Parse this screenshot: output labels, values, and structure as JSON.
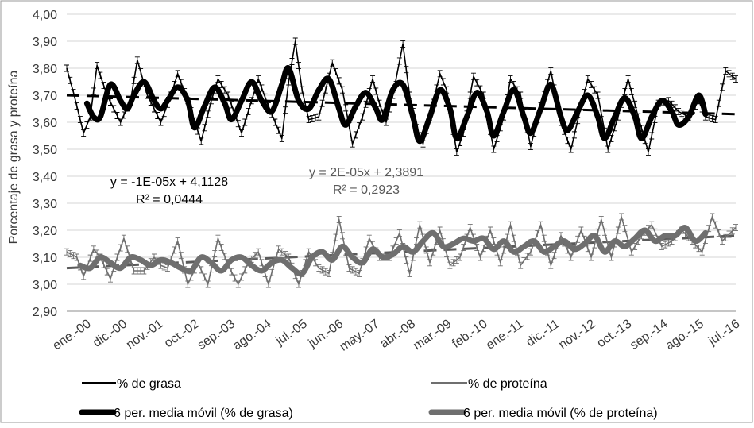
{
  "chart_data": {
    "type": "line",
    "title": "",
    "xlabel": "",
    "ylabel": "Porcentaje de grasa y proteína",
    "ylim": [
      2.9,
      4.0
    ],
    "y_ticks": [
      "2,90",
      "3,00",
      "3,10",
      "3,20",
      "3,30",
      "3,40",
      "3,50",
      "3,60",
      "3,70",
      "3,80",
      "3,90",
      "4,00"
    ],
    "x_tick_labels": [
      "ene.-00",
      "dic.-00",
      "nov.-01",
      "oct.-02",
      "sep.-03",
      "ago.-04",
      "jul.-05",
      "jun.-06",
      "may.-07",
      "abr.-08",
      "mar.-09",
      "feb.-10",
      "ene.-11",
      "dic.-11",
      "nov.-12",
      "oct.-13",
      "sep.-14",
      "ago.-15",
      "jul.-16"
    ],
    "x_range_months": [
      0,
      199
    ],
    "grid": "horizontal",
    "legend_position": "bottom",
    "error_bars": true,
    "series": [
      {
        "name": "% de grasa",
        "style": "thin-black",
        "color": "#000000",
        "anchors": [
          [
            0,
            3.8
          ],
          [
            2,
            3.71
          ],
          [
            5,
            3.56
          ],
          [
            7,
            3.62
          ],
          [
            9,
            3.81
          ],
          [
            12,
            3.7
          ],
          [
            16,
            3.6
          ],
          [
            19,
            3.68
          ],
          [
            21,
            3.83
          ],
          [
            24,
            3.7
          ],
          [
            28,
            3.6
          ],
          [
            31,
            3.7
          ],
          [
            33,
            3.78
          ],
          [
            36,
            3.68
          ],
          [
            40,
            3.53
          ],
          [
            43,
            3.68
          ],
          [
            45,
            3.76
          ],
          [
            48,
            3.7
          ],
          [
            52,
            3.56
          ],
          [
            55,
            3.68
          ],
          [
            57,
            3.76
          ],
          [
            60,
            3.66
          ],
          [
            64,
            3.54
          ],
          [
            66,
            3.75
          ],
          [
            68,
            3.9
          ],
          [
            70,
            3.72
          ],
          [
            72,
            3.61
          ],
          [
            75,
            3.62
          ],
          [
            79,
            3.82
          ],
          [
            82,
            3.72
          ],
          [
            85,
            3.52
          ],
          [
            88,
            3.62
          ],
          [
            91,
            3.76
          ],
          [
            93,
            3.67
          ],
          [
            95,
            3.6
          ],
          [
            97,
            3.7
          ],
          [
            100,
            3.89
          ],
          [
            102,
            3.7
          ],
          [
            104,
            3.58
          ],
          [
            106,
            3.52
          ],
          [
            108,
            3.62
          ],
          [
            111,
            3.78
          ],
          [
            113,
            3.72
          ],
          [
            116,
            3.49
          ],
          [
            118,
            3.56
          ],
          [
            121,
            3.77
          ],
          [
            124,
            3.7
          ],
          [
            127,
            3.5
          ],
          [
            130,
            3.62
          ],
          [
            132,
            3.76
          ],
          [
            135,
            3.7
          ],
          [
            138,
            3.51
          ],
          [
            141,
            3.66
          ],
          [
            144,
            3.79
          ],
          [
            147,
            3.6
          ],
          [
            150,
            3.5
          ],
          [
            153,
            3.66
          ],
          [
            155,
            3.76
          ],
          [
            158,
            3.7
          ],
          [
            161,
            3.5
          ],
          [
            164,
            3.62
          ],
          [
            167,
            3.76
          ],
          [
            170,
            3.62
          ],
          [
            173,
            3.49
          ],
          [
            176,
            3.67
          ],
          [
            179,
            3.68
          ],
          [
            182,
            3.64
          ],
          [
            185,
            3.62
          ],
          [
            188,
            3.68
          ],
          [
            190,
            3.62
          ],
          [
            193,
            3.61
          ],
          [
            196,
            3.79
          ],
          [
            199,
            3.76
          ]
        ]
      },
      {
        "name": "% de proteína",
        "style": "thin-gray",
        "color": "#6f6f6f",
        "anchors": [
          [
            0,
            3.12
          ],
          [
            3,
            3.1
          ],
          [
            5,
            3.03
          ],
          [
            8,
            3.13
          ],
          [
            10,
            3.1
          ],
          [
            13,
            3.02
          ],
          [
            15,
            3.1
          ],
          [
            17,
            3.17
          ],
          [
            20,
            3.05
          ],
          [
            23,
            3.05
          ],
          [
            26,
            3.1
          ],
          [
            28,
            3.07
          ],
          [
            30,
            3.06
          ],
          [
            33,
            3.16
          ],
          [
            36,
            3.0
          ],
          [
            39,
            3.08
          ],
          [
            42,
            3.0
          ],
          [
            45,
            3.17
          ],
          [
            48,
            3.07
          ],
          [
            51,
            3.0
          ],
          [
            54,
            3.08
          ],
          [
            57,
            3.12
          ],
          [
            60,
            3.0
          ],
          [
            63,
            3.13
          ],
          [
            66,
            3.1
          ],
          [
            69,
            3.0
          ],
          [
            72,
            3.12
          ],
          [
            75,
            3.06
          ],
          [
            78,
            3.04
          ],
          [
            81,
            3.24
          ],
          [
            84,
            3.06
          ],
          [
            87,
            3.04
          ],
          [
            90,
            3.17
          ],
          [
            93,
            3.1
          ],
          [
            96,
            3.1
          ],
          [
            99,
            3.19
          ],
          [
            102,
            3.04
          ],
          [
            105,
            3.22
          ],
          [
            108,
            3.08
          ],
          [
            111,
            3.2
          ],
          [
            114,
            3.07
          ],
          [
            117,
            3.1
          ],
          [
            120,
            3.21
          ],
          [
            123,
            3.1
          ],
          [
            126,
            3.2
          ],
          [
            129,
            3.08
          ],
          [
            132,
            3.22
          ],
          [
            135,
            3.07
          ],
          [
            138,
            3.12
          ],
          [
            141,
            3.22
          ],
          [
            144,
            3.07
          ],
          [
            147,
            3.18
          ],
          [
            150,
            3.1
          ],
          [
            153,
            3.2
          ],
          [
            156,
            3.1
          ],
          [
            159,
            3.24
          ],
          [
            162,
            3.1
          ],
          [
            165,
            3.25
          ],
          [
            168,
            3.12
          ],
          [
            171,
            3.18
          ],
          [
            174,
            3.22
          ],
          [
            177,
            3.14
          ],
          [
            180,
            3.16
          ],
          [
            183,
            3.2
          ],
          [
            186,
            3.16
          ],
          [
            189,
            3.12
          ],
          [
            192,
            3.25
          ],
          [
            195,
            3.16
          ],
          [
            199,
            3.21
          ]
        ]
      },
      {
        "name": "6 per. media móvil (% de grasa)",
        "style": "thick-black",
        "color": "#000000",
        "anchors": [
          [
            6,
            3.67
          ],
          [
            8,
            3.62
          ],
          [
            10,
            3.62
          ],
          [
            13,
            3.74
          ],
          [
            16,
            3.68
          ],
          [
            18,
            3.65
          ],
          [
            20,
            3.7
          ],
          [
            23,
            3.75
          ],
          [
            26,
            3.68
          ],
          [
            28,
            3.65
          ],
          [
            30,
            3.68
          ],
          [
            33,
            3.73
          ],
          [
            36,
            3.68
          ],
          [
            38,
            3.58
          ],
          [
            41,
            3.66
          ],
          [
            44,
            3.73
          ],
          [
            47,
            3.67
          ],
          [
            49,
            3.61
          ],
          [
            52,
            3.68
          ],
          [
            55,
            3.75
          ],
          [
            58,
            3.68
          ],
          [
            61,
            3.64
          ],
          [
            64,
            3.74
          ],
          [
            66,
            3.8
          ],
          [
            69,
            3.68
          ],
          [
            72,
            3.65
          ],
          [
            75,
            3.72
          ],
          [
            78,
            3.76
          ],
          [
            81,
            3.65
          ],
          [
            83,
            3.59
          ],
          [
            86,
            3.66
          ],
          [
            89,
            3.71
          ],
          [
            92,
            3.65
          ],
          [
            94,
            3.61
          ],
          [
            97,
            3.72
          ],
          [
            100,
            3.74
          ],
          [
            103,
            3.62
          ],
          [
            105,
            3.53
          ],
          [
            108,
            3.62
          ],
          [
            111,
            3.72
          ],
          [
            114,
            3.65
          ],
          [
            116,
            3.54
          ],
          [
            119,
            3.62
          ],
          [
            122,
            3.71
          ],
          [
            125,
            3.64
          ],
          [
            127,
            3.55
          ],
          [
            130,
            3.64
          ],
          [
            133,
            3.72
          ],
          [
            136,
            3.62
          ],
          [
            138,
            3.56
          ],
          [
            141,
            3.65
          ],
          [
            144,
            3.74
          ],
          [
            147,
            3.62
          ],
          [
            149,
            3.57
          ],
          [
            152,
            3.64
          ],
          [
            155,
            3.7
          ],
          [
            158,
            3.62
          ],
          [
            160,
            3.54
          ],
          [
            163,
            3.62
          ],
          [
            166,
            3.69
          ],
          [
            169,
            3.62
          ],
          [
            171,
            3.54
          ],
          [
            174,
            3.62
          ],
          [
            177,
            3.68
          ],
          [
            180,
            3.64
          ],
          [
            182,
            3.59
          ],
          [
            185,
            3.62
          ],
          [
            188,
            3.7
          ],
          [
            190,
            3.63
          ]
        ]
      },
      {
        "name": "6 per. media móvil (% de proteína)",
        "style": "thick-gray",
        "color": "#6f6f6f",
        "anchors": [
          [
            4,
            3.07
          ],
          [
            7,
            3.06
          ],
          [
            10,
            3.1
          ],
          [
            13,
            3.08
          ],
          [
            16,
            3.06
          ],
          [
            19,
            3.1
          ],
          [
            22,
            3.09
          ],
          [
            25,
            3.07
          ],
          [
            28,
            3.09
          ],
          [
            31,
            3.08
          ],
          [
            34,
            3.06
          ],
          [
            37,
            3.05
          ],
          [
            40,
            3.1
          ],
          [
            43,
            3.08
          ],
          [
            46,
            3.05
          ],
          [
            49,
            3.09
          ],
          [
            52,
            3.1
          ],
          [
            55,
            3.07
          ],
          [
            58,
            3.05
          ],
          [
            61,
            3.08
          ],
          [
            64,
            3.09
          ],
          [
            67,
            3.06
          ],
          [
            70,
            3.04
          ],
          [
            73,
            3.1
          ],
          [
            76,
            3.12
          ],
          [
            79,
            3.09
          ],
          [
            82,
            3.14
          ],
          [
            85,
            3.1
          ],
          [
            88,
            3.08
          ],
          [
            91,
            3.13
          ],
          [
            94,
            3.1
          ],
          [
            97,
            3.11
          ],
          [
            100,
            3.14
          ],
          [
            103,
            3.12
          ],
          [
            106,
            3.16
          ],
          [
            109,
            3.19
          ],
          [
            112,
            3.14
          ],
          [
            115,
            3.15
          ],
          [
            118,
            3.17
          ],
          [
            121,
            3.16
          ],
          [
            124,
            3.17
          ],
          [
            127,
            3.13
          ],
          [
            130,
            3.16
          ],
          [
            133,
            3.12
          ],
          [
            136,
            3.14
          ],
          [
            139,
            3.16
          ],
          [
            142,
            3.12
          ],
          [
            145,
            3.14
          ],
          [
            148,
            3.16
          ],
          [
            151,
            3.13
          ],
          [
            154,
            3.15
          ],
          [
            157,
            3.18
          ],
          [
            160,
            3.12
          ],
          [
            163,
            3.16
          ],
          [
            166,
            3.14
          ],
          [
            169,
            3.17
          ],
          [
            172,
            3.2
          ],
          [
            175,
            3.16
          ],
          [
            178,
            3.18
          ],
          [
            181,
            3.18
          ],
          [
            184,
            3.21
          ],
          [
            187,
            3.16
          ],
          [
            190,
            3.19
          ]
        ]
      }
    ],
    "trendlines": [
      {
        "series": "% de grasa",
        "start": 3.7,
        "end": 3.63,
        "equation": "y = -1E-05x + 4,1128",
        "r2": "R² = 0,0444"
      },
      {
        "series": "% de proteína",
        "start": 3.06,
        "end": 3.18,
        "equation": "y = 2E-05x + 2,3891",
        "r2": "R² = 0,2923"
      }
    ],
    "legend": [
      {
        "label": "% de grasa",
        "style": "thin-black"
      },
      {
        "label": "% de proteína",
        "style": "thin-gray"
      },
      {
        "label": "6 per. media móvil (% de grasa)",
        "style": "thick-black"
      },
      {
        "label": "6 per. media móvil (% de proteína)",
        "style": "thick-gray"
      }
    ]
  }
}
